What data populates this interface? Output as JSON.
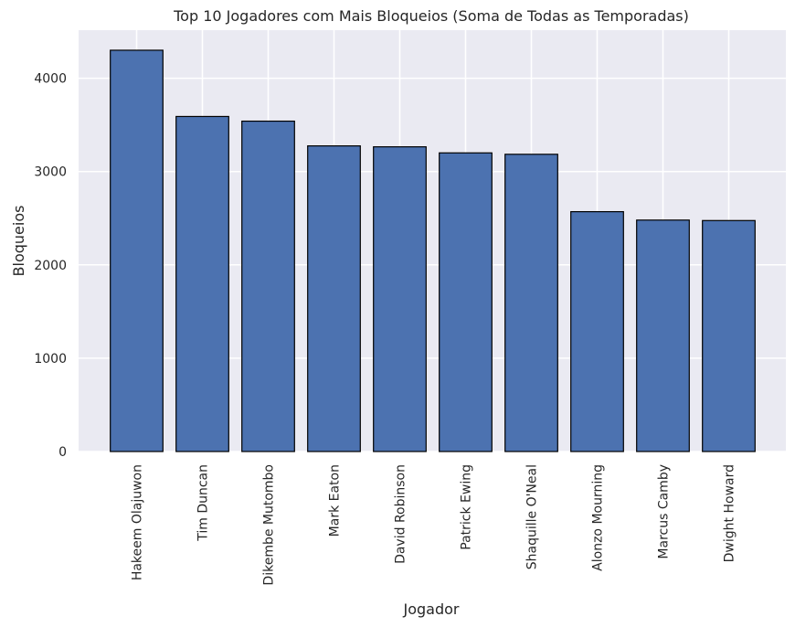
{
  "chart_data": {
    "type": "bar",
    "title": "Top 10 Jogadores com Mais Bloqueios (Soma de Todas as Temporadas)",
    "xlabel": "Jogador",
    "ylabel": "Bloqueios",
    "categories": [
      "Hakeem Olajuwon",
      "Tim Duncan",
      "Dikembe Mutombo",
      "Mark Eaton",
      "David Robinson",
      "Patrick Ewing",
      "Shaquille O'Neal",
      "Alonzo Mourning",
      "Marcus Camby",
      "Dwight Howard"
    ],
    "values": [
      4300,
      3590,
      3540,
      3275,
      3265,
      3200,
      3185,
      2570,
      2480,
      2475
    ],
    "ylim": [
      0,
      4515
    ],
    "yticks": [
      0,
      1000,
      2000,
      3000,
      4000
    ],
    "ytick_labels": [
      "0",
      "1000",
      "2000",
      "3000",
      "4000"
    ],
    "grid": true,
    "colors": {
      "bar": "#4c72b0",
      "bar_edge": "#000000",
      "plot_bg": "#eaeaf2",
      "grid": "#ffffff"
    }
  }
}
